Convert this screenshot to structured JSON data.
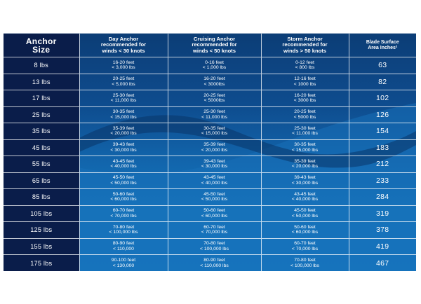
{
  "header": {
    "size_label": [
      "Anchor",
      "Size"
    ],
    "day": [
      "Day Anchor",
      "recommended for",
      "winds < 30 knots"
    ],
    "cruising": [
      "Cruising Anchor",
      "recommended for",
      "winds < 50 knots"
    ],
    "storm": [
      "Storm Anchor",
      "recommended for",
      "winds > 50 knots"
    ],
    "area": [
      "Blade Surface",
      "Area Inches²"
    ]
  },
  "rows": [
    {
      "size": "8 lbs",
      "day": [
        "16-20 feet",
        "< 3,000 lbs"
      ],
      "cruising": [
        "0-16 feet",
        "< 1,000 lbs"
      ],
      "storm": [
        "0-12 feet",
        "< 800 lbs"
      ],
      "area": "63"
    },
    {
      "size": "13 lbs",
      "day": [
        "20-25 feet",
        "< 5,000 lbs"
      ],
      "cruising": [
        "16-20 feet",
        "< 3000lbs"
      ],
      "storm": [
        "12-16 feet",
        "< 1000 lbs"
      ],
      "area": "82"
    },
    {
      "size": "17 lbs",
      "day": [
        "25-30 feet",
        "< 11,000 lbs"
      ],
      "cruising": [
        "20-25 feet",
        "< 5000lbs"
      ],
      "storm": [
        "16-20 feet",
        "< 3000 lbs"
      ],
      "area": "102"
    },
    {
      "size": "25 lbs",
      "day": [
        "30-35 feet",
        "< 15,000 lbs"
      ],
      "cruising": [
        "25-30 feet",
        "< 11,000 lbs"
      ],
      "storm": [
        "20-25 feet",
        "< 5000 lbs"
      ],
      "area": "126"
    },
    {
      "size": "35 lbs",
      "day": [
        "35-39 feet",
        "< 20,000 lbs"
      ],
      "cruising": [
        "30-35 feet",
        "< 15,000 lbs"
      ],
      "storm": [
        "25-30 feet",
        "< 11,000 lbs"
      ],
      "area": "154"
    },
    {
      "size": "45 lbs",
      "day": [
        "39-43 feet",
        "< 30,000 lbs"
      ],
      "cruising": [
        "35-39 feet",
        "< 20,000 lbs"
      ],
      "storm": [
        "30-35 feet",
        "< 15,000 lbs"
      ],
      "area": "183"
    },
    {
      "size": "55 lbs",
      "day": [
        "43-45 feet",
        "< 40,000 lbs"
      ],
      "cruising": [
        "39-43 feet",
        "< 30,000 lbs"
      ],
      "storm": [
        "35-39 feet",
        "< 20,000 lbs"
      ],
      "area": "212"
    },
    {
      "size": "65 lbs",
      "day": [
        "45-50 feet",
        "< 50,000 lbs"
      ],
      "cruising": [
        "43-45 feet",
        "< 40,000 lbs"
      ],
      "storm": [
        "39-43 feet",
        "< 30,000 lbs"
      ],
      "area": "233"
    },
    {
      "size": "85 lbs",
      "day": [
        "50-60 feet",
        "< 60,000 lbs"
      ],
      "cruising": [
        "45-50 feet",
        "< 50,000 lbs"
      ],
      "storm": [
        "43-45 feet",
        "< 40,000 lbs"
      ],
      "area": "284"
    },
    {
      "size": "105 lbs",
      "day": [
        "60-70 feet",
        "< 70,000 lbs"
      ],
      "cruising": [
        "50-60 feet",
        "< 60,000 lbs"
      ],
      "storm": [
        "45-50 feet",
        "< 50,000 lbs"
      ],
      "area": "319"
    },
    {
      "size": "125 lbs",
      "day": [
        "70-80 feet",
        "< 100,000 lbs"
      ],
      "cruising": [
        "60-70 feet",
        "< 70,000 lbs"
      ],
      "storm": [
        "50-60 feet",
        "< 60,000 lbs"
      ],
      "area": "378"
    },
    {
      "size": "155 lbs",
      "day": [
        "80-90 feet",
        "< 110,000"
      ],
      "cruising": [
        "70-80 feet",
        "< 100,000 lbs"
      ],
      "storm": [
        "60-70 feet",
        "< 70,000 lbs"
      ],
      "area": "419"
    },
    {
      "size": "175 lbs",
      "day": [
        "90-100 feet",
        "< 130,000"
      ],
      "cruising": [
        "80-90 feet",
        "< 110,000 lbs"
      ],
      "storm": [
        "70-80 feet",
        "< 100,000 lbs"
      ],
      "area": "467"
    }
  ],
  "colors": {
    "size_column_bg": "#0a1d4a",
    "table_top": "#0c3d76",
    "table_bottom": "#1578c0",
    "wave_light": "#1a72bd",
    "text": "#ffffff"
  }
}
